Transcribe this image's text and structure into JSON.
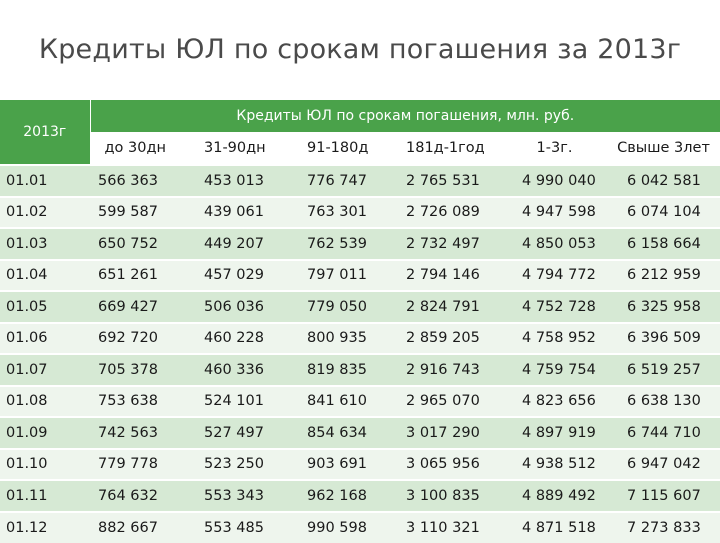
{
  "title": "Кредиты ЮЛ по срокам погашения за 2013г",
  "table": {
    "corner_label": "2013г",
    "group_header": "Кредиты ЮЛ по срокам погашения, млн. руб.",
    "columns": [
      "до 30дн",
      "31-90дн",
      "91-180д",
      "181д-1год",
      "1-3г.",
      "Свыше 3лет"
    ],
    "rows": [
      {
        "label": "01.01",
        "values": [
          "566 363",
          "453 013",
          "776 747",
          "2 765 531",
          "4 990 040",
          "6 042 581"
        ]
      },
      {
        "label": "01.02",
        "values": [
          "599 587",
          "439 061",
          "763 301",
          "2 726 089",
          "4 947 598",
          "6 074 104"
        ]
      },
      {
        "label": "01.03",
        "values": [
          "650 752",
          "449 207",
          "762 539",
          "2 732 497",
          "4 850 053",
          "6 158 664"
        ]
      },
      {
        "label": "01.04",
        "values": [
          "651 261",
          "457 029",
          "797 011",
          "2 794 146",
          "4 794 772",
          "6 212 959"
        ]
      },
      {
        "label": "01.05",
        "values": [
          "669 427",
          "506 036",
          "779 050",
          "2 824 791",
          "4 752 728",
          "6 325 958"
        ]
      },
      {
        "label": "01.06",
        "values": [
          "692 720",
          "460 228",
          "800 935",
          "2 859 205",
          "4 758 952",
          "6 396 509"
        ]
      },
      {
        "label": "01.07",
        "values": [
          "705 378",
          "460 336",
          "819 835",
          "2 916 743",
          "4 759 754",
          "6 519 257"
        ]
      },
      {
        "label": "01.08",
        "values": [
          "753 638",
          "524 101",
          "841 610",
          "2 965 070",
          "4 823 656",
          "6 638 130"
        ]
      },
      {
        "label": "01.09",
        "values": [
          "742 563",
          "527 497",
          "854 634",
          "3 017 290",
          "4 897 919",
          "6 744 710"
        ]
      },
      {
        "label": "01.10",
        "values": [
          "779 778",
          "523 250",
          "903 691",
          "3 065 956",
          "4 938 512",
          "6 947 042"
        ]
      },
      {
        "label": "01.11",
        "values": [
          "764 632",
          "553 343",
          "962 168",
          "3 100 835",
          "4 889 492",
          "7 115 607"
        ]
      },
      {
        "label": "01.12",
        "values": [
          "882 667",
          "553 485",
          "990 598",
          "3 110 321",
          "4 871 518",
          "7 273 833"
        ]
      }
    ]
  }
}
